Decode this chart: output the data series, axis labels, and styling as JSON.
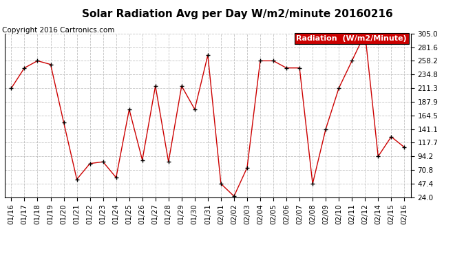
{
  "title": "Solar Radiation Avg per Day W/m2/minute 20160216",
  "copyright": "Copyright 2016 Cartronics.com",
  "legend_label": "Radiation  (W/m2/Minute)",
  "dates": [
    "01/16",
    "01/17",
    "01/18",
    "01/19",
    "01/20",
    "01/21",
    "01/22",
    "01/23",
    "01/24",
    "01/25",
    "01/26",
    "01/27",
    "01/28",
    "01/29",
    "01/30",
    "01/31",
    "02/01",
    "02/02",
    "02/03",
    "02/04",
    "02/05",
    "02/06",
    "02/07",
    "02/08",
    "02/09",
    "02/10",
    "02/11",
    "02/12",
    "02/14",
    "02/15",
    "02/16"
  ],
  "values": [
    211.3,
    246.0,
    258.2,
    252.0,
    152.5,
    55.0,
    82.0,
    85.0,
    58.0,
    175.0,
    88.0,
    215.0,
    85.0,
    215.0,
    175.0,
    268.0,
    47.4,
    26.0,
    75.0,
    258.2,
    258.2,
    246.0,
    246.0,
    47.4,
    141.1,
    211.3,
    258.2,
    305.0,
    94.2,
    128.0,
    110.0
  ],
  "ylim": [
    24.0,
    305.0
  ],
  "yticks": [
    24.0,
    47.4,
    70.8,
    94.2,
    117.7,
    141.1,
    164.5,
    187.9,
    211.3,
    234.8,
    258.2,
    281.6,
    305.0
  ],
  "line_color": "#cc0000",
  "marker_color": "#000000",
  "bg_color": "#ffffff",
  "grid_color": "#bbbbbb",
  "legend_bg": "#cc0000",
  "legend_text_color": "#ffffff",
  "title_fontsize": 11,
  "copyright_fontsize": 7.5,
  "tick_fontsize": 7.5,
  "legend_fontsize": 8
}
